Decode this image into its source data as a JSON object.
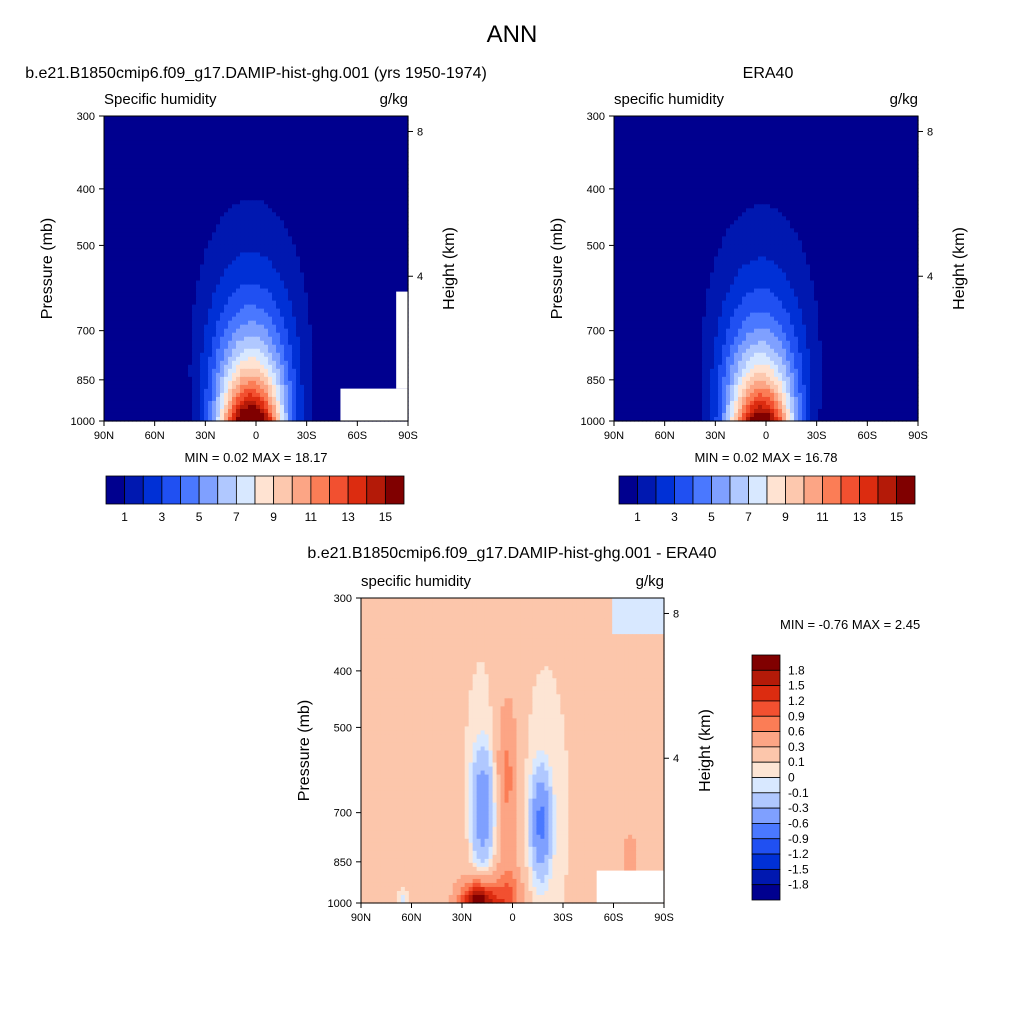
{
  "figure_title": "ANN",
  "colors": {
    "abs_scale": [
      "#00008f",
      "#0018b0",
      "#0030d6",
      "#2050f2",
      "#4a78ff",
      "#7fa0ff",
      "#b0c8ff",
      "#d8e8ff",
      "#ffe3d2",
      "#fdc8ae",
      "#fca585",
      "#fb7d56",
      "#f25030",
      "#dc2c10",
      "#b41a08",
      "#800000"
    ],
    "diff_scale": [
      "#00008f",
      "#0018b0",
      "#0030d6",
      "#2050f2",
      "#4a78ff",
      "#7fa0ff",
      "#b0c8ff",
      "#d8e8ff",
      "#fde5d4",
      "#fcc6ab",
      "#fca585",
      "#fb7d56",
      "#f25030",
      "#dc2c10",
      "#b41a08",
      "#800000"
    ]
  },
  "chart_data": [
    {
      "type": "heatmap",
      "title": "b.e21.B1850cmip6.f09_g17.DAMIP-hist-ghg.001 (yrs 1950-1974)",
      "left_label": "Specific humidity",
      "right_label": "g/kg",
      "ylabel": "Pressure (mb)",
      "ylabel_right": "Height (km)",
      "x_ticks": [
        "90N",
        "60N",
        "30N",
        "0",
        "30S",
        "60S",
        "90S"
      ],
      "x_values": [
        90,
        60,
        30,
        0,
        -30,
        -60,
        -90
      ],
      "y_ticks": [
        "300",
        "400",
        "500",
        "700",
        "850",
        "1000"
      ],
      "y_values": [
        300,
        400,
        500,
        700,
        850,
        1000
      ],
      "height_ticks": [
        "8",
        "4"
      ],
      "height_values": [
        8,
        4
      ],
      "stats_text": "MIN =   0.02  MAX =  18.17",
      "min": 0.02,
      "max": 18.17,
      "colorbar_levels": [
        1,
        2,
        3,
        4,
        5,
        6,
        7,
        8,
        9,
        10,
        11,
        12,
        13,
        14,
        15
      ],
      "colorbar_labels": [
        "1",
        "3",
        "5",
        "7",
        "9",
        "11",
        "13",
        "15"
      ],
      "field": {
        "peak": 18.17,
        "center_lat": 3,
        "width_surface": 20,
        "scale_height_km": 2.1
      },
      "missing_region": "bottom-right (Antarctic surface)"
    },
    {
      "type": "heatmap",
      "title": "ERA40",
      "left_label": "specific humidity",
      "right_label": "g/kg",
      "ylabel": "Pressure (mb)",
      "ylabel_right": "Height (km)",
      "x_ticks": [
        "90N",
        "60N",
        "30N",
        "0",
        "30S",
        "60S",
        "90S"
      ],
      "x_values": [
        90,
        60,
        30,
        0,
        -30,
        -60,
        -90
      ],
      "y_ticks": [
        "300",
        "400",
        "500",
        "700",
        "850",
        "1000"
      ],
      "y_values": [
        300,
        400,
        500,
        700,
        850,
        1000
      ],
      "height_ticks": [
        "8",
        "4"
      ],
      "height_values": [
        8,
        4
      ],
      "stats_text": "MIN =   0.02  MAX =  16.78",
      "min": 0.02,
      "max": 16.78,
      "colorbar_levels": [
        1,
        2,
        3,
        4,
        5,
        6,
        7,
        8,
        9,
        10,
        11,
        12,
        13,
        14,
        15
      ],
      "colorbar_labels": [
        "1",
        "3",
        "5",
        "7",
        "9",
        "11",
        "13",
        "15"
      ],
      "field": {
        "peak": 16.78,
        "center_lat": 3,
        "width_surface": 20,
        "scale_height_km": 2.1
      }
    },
    {
      "type": "heatmap",
      "title": "b.e21.B1850cmip6.f09_g17.DAMIP-hist-ghg.001 - ERA40",
      "left_label": "specific humidity",
      "right_label": "g/kg",
      "ylabel": "Pressure (mb)",
      "ylabel_right": "Height (km)",
      "x_ticks": [
        "90N",
        "60N",
        "30N",
        "0",
        "30S",
        "60S",
        "90S"
      ],
      "x_values": [
        90,
        60,
        30,
        0,
        -30,
        -60,
        -90
      ],
      "y_ticks": [
        "300",
        "400",
        "500",
        "700",
        "850",
        "1000"
      ],
      "y_values": [
        300,
        400,
        500,
        700,
        850,
        1000
      ],
      "height_ticks": [
        "8",
        "4"
      ],
      "height_values": [
        8,
        4
      ],
      "stats_text": "MIN =  -0.76  MAX =   2.45",
      "min": -0.76,
      "max": 2.45,
      "colorbar_levels": [
        -1.8,
        -1.5,
        -1.2,
        -0.9,
        -0.6,
        -0.3,
        -0.1,
        0,
        0.1,
        0.3,
        0.6,
        0.9,
        1.2,
        1.5,
        1.8
      ],
      "colorbar_labels": [
        "1.8",
        "1.5",
        "1.2",
        "0.9",
        "0.6",
        "0.3",
        "0.1",
        "0",
        "-0.1",
        "-0.3",
        "-0.6",
        "-0.9",
        "-1.2",
        "-1.5",
        "-1.8"
      ],
      "missing_region": "bottom-right (Antarctic surface)"
    }
  ]
}
